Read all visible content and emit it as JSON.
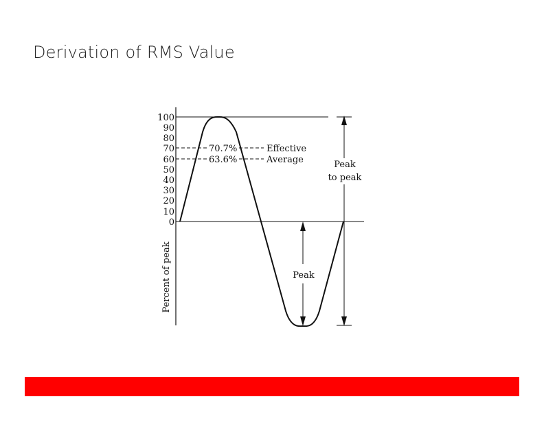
{
  "slide": {
    "title": "Derivation of RMS Value"
  },
  "diagram": {
    "y_ticks": [
      "100",
      "90",
      "80",
      "70",
      "60",
      "50",
      "40",
      "30",
      "20",
      "10",
      "0"
    ],
    "y_axis_label": "Percent of peak",
    "effective_percent": "70.7%",
    "effective_label": "Effective",
    "average_percent": "63.6%",
    "average_label": "Average",
    "peak_to_peak_line1": "Peak",
    "peak_to_peak_line2": "to peak",
    "peak_label": "Peak"
  },
  "colors": {
    "footer_bar": "#ff0000",
    "line": "#111111"
  }
}
